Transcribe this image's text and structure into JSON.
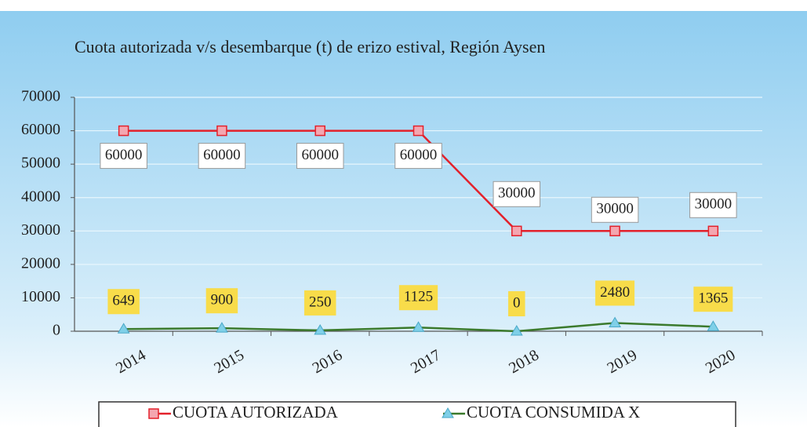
{
  "chart_data": {
    "type": "line",
    "title": "Cuota autorizada v/s desembarque (t) de erizo  estival, Región Aysen",
    "categories": [
      "2014",
      "2015",
      "2016",
      "2017",
      "2018",
      "2019",
      "2020"
    ],
    "series": [
      {
        "name": "CUOTA AUTORIZADA",
        "color": "#e3212b",
        "marker": "square",
        "marker_color": "#f4a6b0",
        "values": [
          60000,
          60000,
          60000,
          60000,
          30000,
          30000,
          30000
        ]
      },
      {
        "name": "CUOTA CONSUMIDA X",
        "color": "#3b7a2c",
        "marker": "triangle",
        "marker_color": "#7fd0e8",
        "values": [
          649,
          900,
          250,
          1125,
          0,
          2480,
          1365
        ]
      }
    ],
    "ylim": [
      0,
      70000
    ],
    "yticks": [
      0,
      10000,
      20000,
      30000,
      40000,
      50000,
      60000,
      70000
    ],
    "grid": true,
    "legend": "bottom"
  }
}
